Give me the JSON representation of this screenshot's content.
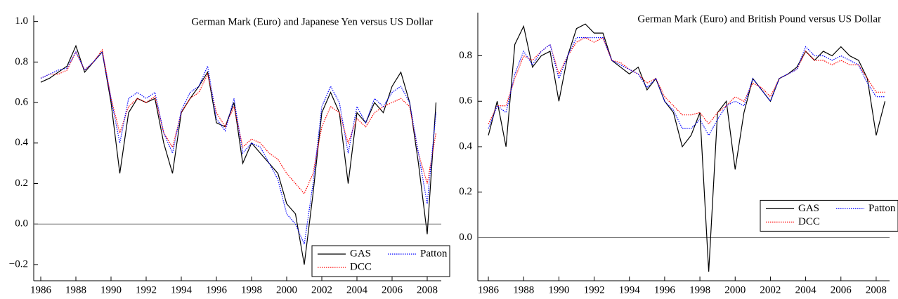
{
  "chart_data": [
    {
      "type": "line",
      "title": "German Mark (Euro) and Japanese Yen versus US Dollar",
      "x": [
        1986,
        1986.5,
        1987,
        1987.5,
        1988,
        1988.5,
        1989,
        1989.5,
        1990,
        1990.5,
        1991,
        1991.5,
        1992,
        1992.5,
        1993,
        1993.5,
        1994,
        1994.5,
        1995,
        1995.5,
        1996,
        1996.5,
        1997,
        1997.5,
        1998,
        1998.5,
        1999,
        1999.5,
        2000,
        2000.5,
        2001,
        2001.5,
        2002,
        2002.5,
        2003,
        2003.5,
        2004,
        2004.5,
        2005,
        2005.5,
        2006,
        2006.5,
        2007,
        2007.5,
        2008,
        2008.5
      ],
      "series": [
        {
          "name": "GAS",
          "color": "#000000",
          "linestyle": "solid",
          "values": [
            0.7,
            0.72,
            0.75,
            0.78,
            0.88,
            0.75,
            0.8,
            0.85,
            0.6,
            0.25,
            0.55,
            0.62,
            0.6,
            0.62,
            0.4,
            0.25,
            0.55,
            0.62,
            0.68,
            0.75,
            0.5,
            0.48,
            0.6,
            0.3,
            0.4,
            0.35,
            0.3,
            0.25,
            0.1,
            0.05,
            -0.2,
            0.15,
            0.55,
            0.65,
            0.55,
            0.2,
            0.55,
            0.5,
            0.6,
            0.55,
            0.68,
            0.75,
            0.6,
            0.3,
            -0.05,
            0.6
          ]
        },
        {
          "name": "DCC",
          "color": "#ff0000",
          "linestyle": "dotted",
          "values": [
            0.72,
            0.74,
            0.74,
            0.76,
            0.85,
            0.76,
            0.8,
            0.86,
            0.62,
            0.45,
            0.58,
            0.62,
            0.6,
            0.63,
            0.45,
            0.38,
            0.55,
            0.62,
            0.65,
            0.74,
            0.55,
            0.48,
            0.58,
            0.38,
            0.42,
            0.4,
            0.35,
            0.32,
            0.25,
            0.2,
            0.15,
            0.25,
            0.48,
            0.58,
            0.55,
            0.4,
            0.52,
            0.48,
            0.55,
            0.58,
            0.6,
            0.62,
            0.58,
            0.35,
            0.2,
            0.45
          ]
        },
        {
          "name": "Patton",
          "color": "#0000ff",
          "linestyle": "dotted",
          "values": [
            0.72,
            0.74,
            0.76,
            0.77,
            0.85,
            0.76,
            0.8,
            0.85,
            0.62,
            0.4,
            0.62,
            0.65,
            0.62,
            0.65,
            0.45,
            0.35,
            0.56,
            0.65,
            0.68,
            0.78,
            0.52,
            0.46,
            0.62,
            0.35,
            0.4,
            0.38,
            0.3,
            0.22,
            0.05,
            0.0,
            -0.1,
            0.2,
            0.58,
            0.68,
            0.6,
            0.35,
            0.58,
            0.5,
            0.62,
            0.58,
            0.65,
            0.68,
            0.6,
            0.35,
            0.1,
            0.55
          ]
        }
      ],
      "xlim": [
        1985.6,
        2008.8
      ],
      "xticks": [
        1986,
        1988,
        1990,
        1992,
        1994,
        1996,
        1998,
        2000,
        2002,
        2004,
        2006,
        2008
      ],
      "ylim": [
        -0.28,
        1.03
      ],
      "yticks": [
        {
          "value": -0.2,
          "label": "−0.2"
        },
        {
          "value": 0,
          "label": "0.0"
        },
        0.2,
        0.4,
        0.6,
        0.8,
        {
          "value": 1,
          "label": "1.0"
        }
      ],
      "hline": 0,
      "legend": "lower right"
    },
    {
      "type": "line",
      "title": "German Mark (Euro) and British Pound versus US Dollar",
      "x": [
        1986,
        1986.5,
        1987,
        1987.5,
        1988,
        1988.5,
        1989,
        1989.5,
        1990,
        1990.5,
        1991,
        1991.5,
        1992,
        1992.5,
        1993,
        1993.5,
        1994,
        1994.5,
        1995,
        1995.5,
        1996,
        1996.5,
        1997,
        1997.5,
        1998,
        1998.5,
        1999,
        1999.5,
        2000,
        2000.5,
        2001,
        2001.5,
        2002,
        2002.5,
        2003,
        2003.5,
        2004,
        2004.5,
        2005,
        2005.5,
        2006,
        2006.5,
        2007,
        2007.5,
        2008,
        2008.5
      ],
      "series": [
        {
          "name": "GAS",
          "color": "#000000",
          "linestyle": "solid",
          "values": [
            0.45,
            0.6,
            0.4,
            0.85,
            0.93,
            0.75,
            0.8,
            0.82,
            0.6,
            0.8,
            0.92,
            0.94,
            0.9,
            0.9,
            0.78,
            0.75,
            0.72,
            0.75,
            0.65,
            0.7,
            0.6,
            0.55,
            0.4,
            0.45,
            0.55,
            -0.15,
            0.55,
            0.6,
            0.3,
            0.55,
            0.7,
            0.65,
            0.6,
            0.7,
            0.72,
            0.75,
            0.82,
            0.78,
            0.82,
            0.8,
            0.84,
            0.8,
            0.78,
            0.7,
            0.45,
            0.6
          ]
        },
        {
          "name": "DCC",
          "color": "#ff0000",
          "linestyle": "dotted",
          "values": [
            0.5,
            0.58,
            0.58,
            0.7,
            0.8,
            0.78,
            0.82,
            0.85,
            0.72,
            0.8,
            0.86,
            0.88,
            0.86,
            0.88,
            0.78,
            0.77,
            0.74,
            0.72,
            0.68,
            0.7,
            0.62,
            0.58,
            0.54,
            0.54,
            0.55,
            0.5,
            0.55,
            0.58,
            0.62,
            0.6,
            0.68,
            0.66,
            0.62,
            0.7,
            0.72,
            0.74,
            0.82,
            0.78,
            0.78,
            0.76,
            0.78,
            0.76,
            0.76,
            0.7,
            0.64,
            0.64
          ]
        },
        {
          "name": "Patton",
          "color": "#0000ff",
          "linestyle": "dotted",
          "values": [
            0.48,
            0.58,
            0.55,
            0.72,
            0.82,
            0.76,
            0.82,
            0.85,
            0.7,
            0.8,
            0.88,
            0.88,
            0.88,
            0.88,
            0.78,
            0.76,
            0.74,
            0.72,
            0.66,
            0.7,
            0.6,
            0.56,
            0.48,
            0.48,
            0.52,
            0.45,
            0.52,
            0.58,
            0.6,
            0.58,
            0.7,
            0.65,
            0.6,
            0.7,
            0.72,
            0.74,
            0.84,
            0.8,
            0.8,
            0.78,
            0.8,
            0.78,
            0.76,
            0.68,
            0.62,
            0.62
          ]
        }
      ],
      "xlim": [
        1985.4,
        2008.76
      ],
      "xticks": [
        1986,
        1988,
        1990,
        1992,
        1994,
        1996,
        1998,
        2000,
        2002,
        2004,
        2006,
        2008
      ],
      "ylim": [
        -0.19,
        0.99
      ],
      "yticks": [
        {
          "value": 0,
          "label": "0.0"
        },
        0.2,
        0.4,
        0.6,
        0.8
      ],
      "hline": 0,
      "legend": "right"
    }
  ]
}
